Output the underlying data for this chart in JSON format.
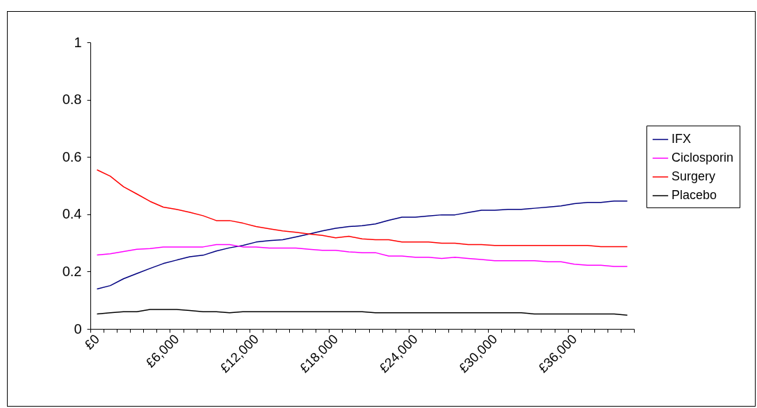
{
  "chart_data": {
    "type": "line",
    "categories": [
      "£0",
      null,
      null,
      null,
      null,
      null,
      "£6,000",
      null,
      null,
      null,
      null,
      null,
      "£12,000",
      null,
      null,
      null,
      null,
      null,
      "£18,000",
      null,
      null,
      null,
      null,
      null,
      "£24,000",
      null,
      null,
      null,
      null,
      null,
      "£30,000",
      null,
      null,
      null,
      null,
      null,
      "£36,000",
      null,
      null,
      null,
      null
    ],
    "series": [
      {
        "name": "IFX",
        "color": "#000080",
        "values": [
          0.139,
          0.151,
          0.175,
          0.193,
          0.211,
          0.228,
          0.24,
          0.252,
          0.257,
          0.272,
          0.283,
          0.291,
          0.303,
          0.308,
          0.311,
          0.321,
          0.331,
          0.342,
          0.351,
          0.357,
          0.36,
          0.366,
          0.379,
          0.39,
          0.39,
          0.394,
          0.398,
          0.398,
          0.406,
          0.414,
          0.414,
          0.417,
          0.417,
          0.421,
          0.425,
          0.429,
          0.437,
          0.441,
          0.441,
          0.446,
          0.446
        ]
      },
      {
        "name": "Ciclosporin",
        "color": "#ff00ff",
        "values": [
          0.258,
          0.262,
          0.27,
          0.278,
          0.28,
          0.286,
          0.286,
          0.286,
          0.286,
          0.294,
          0.294,
          0.286,
          0.286,
          0.282,
          0.282,
          0.282,
          0.278,
          0.274,
          0.274,
          0.269,
          0.266,
          0.266,
          0.254,
          0.254,
          0.25,
          0.25,
          0.246,
          0.25,
          0.246,
          0.242,
          0.238,
          0.238,
          0.238,
          0.238,
          0.234,
          0.234,
          0.226,
          0.222,
          0.222,
          0.218,
          0.218
        ]
      },
      {
        "name": "Surgery",
        "color": "#ff0000",
        "values": [
          0.555,
          0.533,
          0.496,
          0.471,
          0.445,
          0.425,
          0.417,
          0.407,
          0.395,
          0.378,
          0.378,
          0.369,
          0.357,
          0.349,
          0.342,
          0.337,
          0.331,
          0.326,
          0.318,
          0.323,
          0.314,
          0.311,
          0.311,
          0.303,
          0.303,
          0.303,
          0.299,
          0.299,
          0.294,
          0.294,
          0.291,
          0.291,
          0.291,
          0.291,
          0.291,
          0.291,
          0.291,
          0.291,
          0.287,
          0.287,
          0.287
        ]
      },
      {
        "name": "Placebo",
        "color": "#000000",
        "values": [
          0.052,
          0.056,
          0.06,
          0.06,
          0.068,
          0.068,
          0.068,
          0.064,
          0.06,
          0.06,
          0.056,
          0.06,
          0.06,
          0.06,
          0.06,
          0.06,
          0.06,
          0.06,
          0.06,
          0.06,
          0.06,
          0.056,
          0.056,
          0.056,
          0.056,
          0.056,
          0.056,
          0.056,
          0.056,
          0.056,
          0.056,
          0.056,
          0.056,
          0.052,
          0.052,
          0.052,
          0.052,
          0.052,
          0.052,
          0.052,
          0.048
        ]
      }
    ],
    "ylim": [
      0,
      1
    ],
    "yticks": [
      0,
      0.2,
      0.4,
      0.6,
      0.8,
      1
    ],
    "legend": "right"
  }
}
